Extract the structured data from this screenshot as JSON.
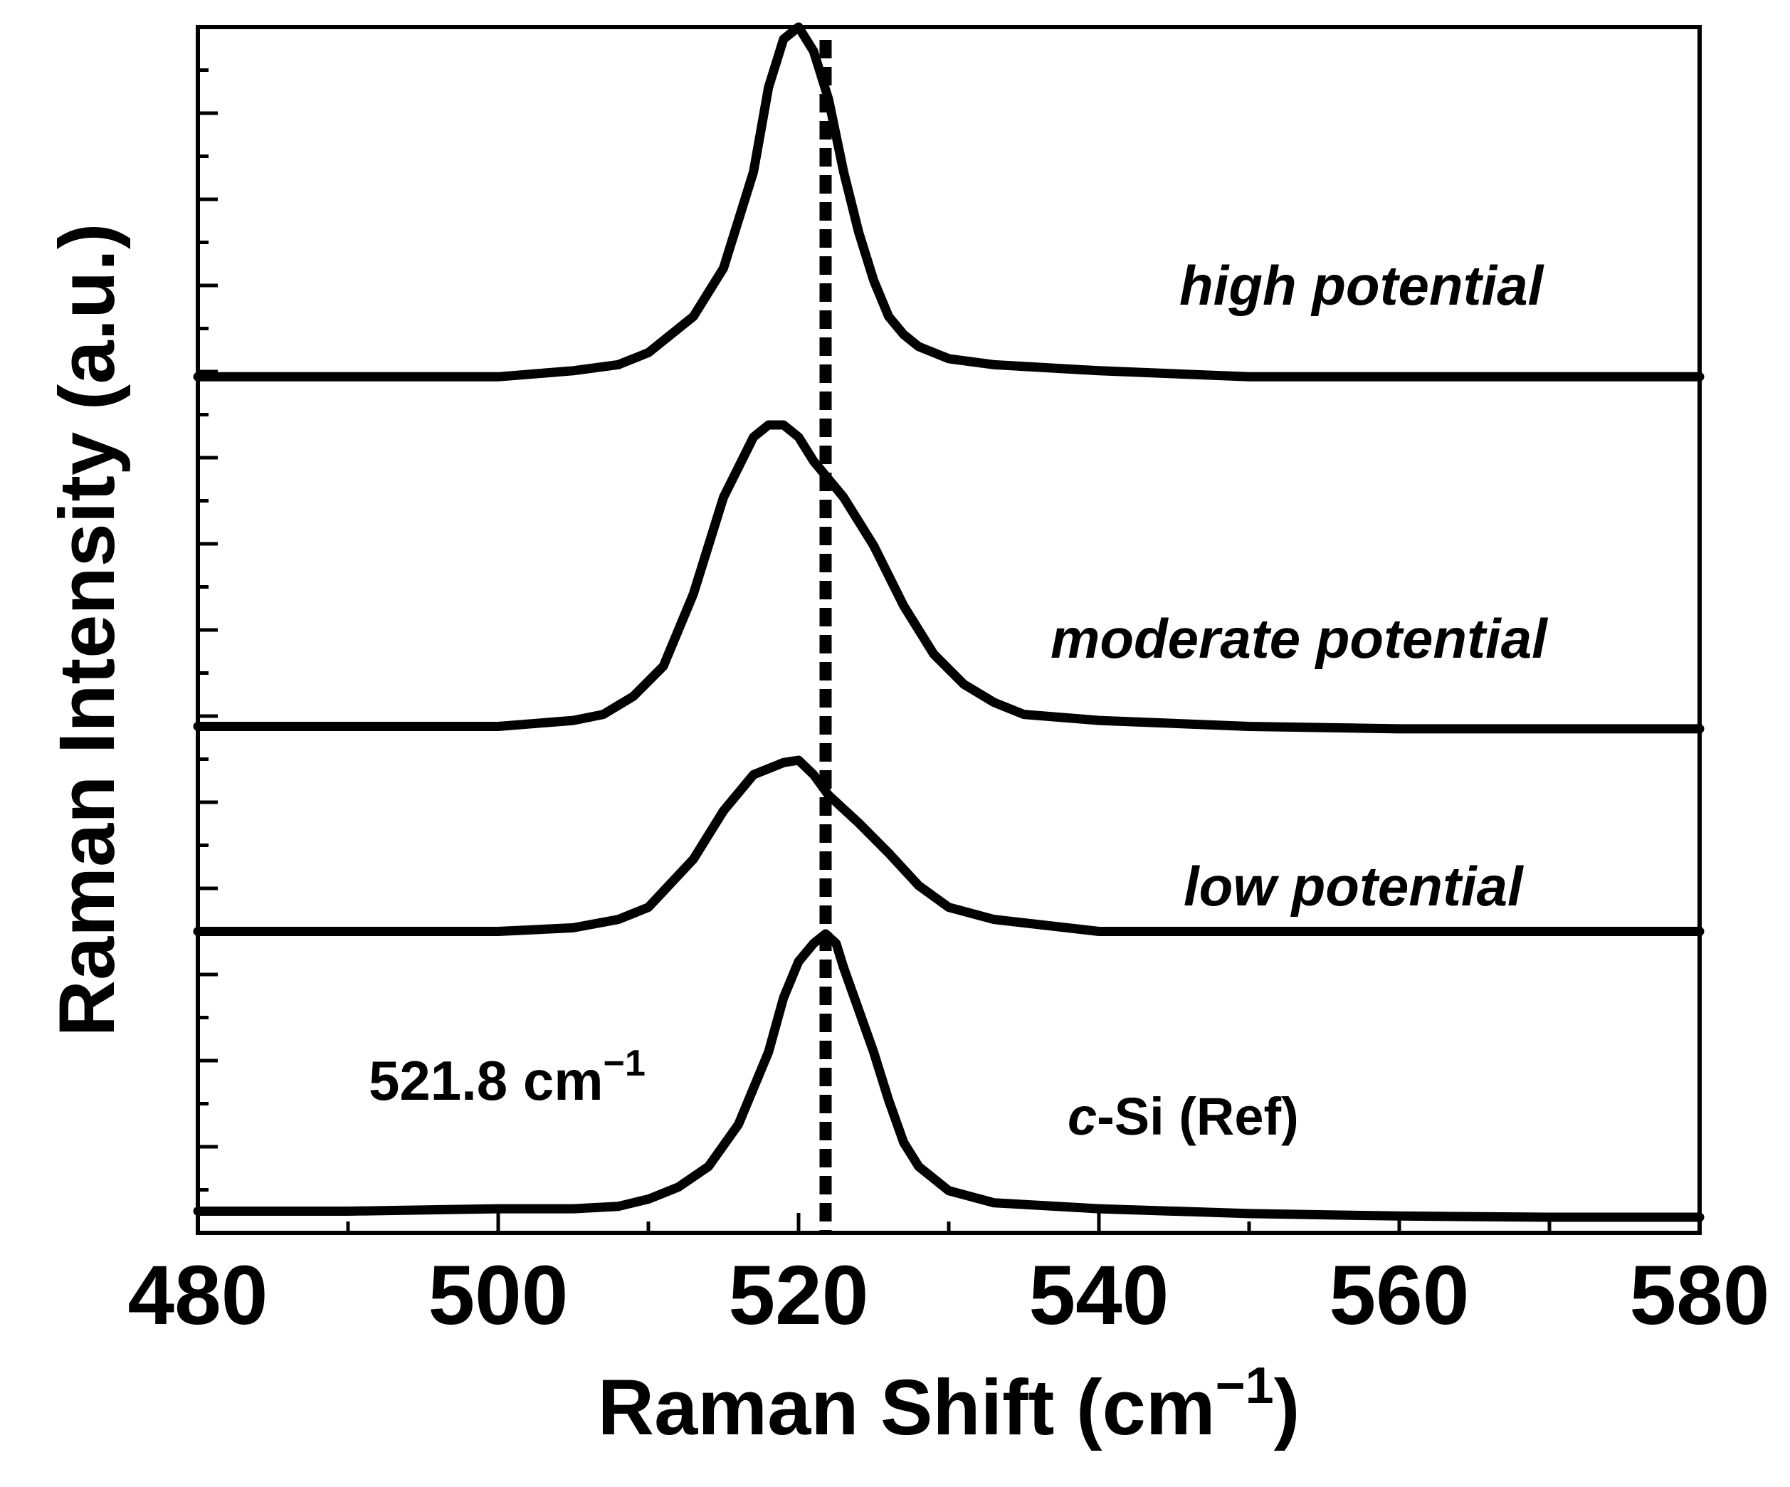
{
  "chart_data": {
    "type": "line",
    "title": "",
    "xlabel": "Raman Shift (cm",
    "xlabel_sup": "−1",
    "xlabel_close": ")",
    "ylabel": "Raman Intensity (a.u.)",
    "xlim": [
      480,
      580
    ],
    "ylim": [
      0,
      100
    ],
    "x_ticks": [
      "480",
      "500",
      "520",
      "540",
      "560",
      "580"
    ],
    "y_tick_labels_shown": false,
    "reference_line": {
      "x": 521.8,
      "style": "dotted"
    },
    "annotation": {
      "text": "521.8 cm",
      "sup": "−1"
    },
    "series": [
      {
        "name": "high potential",
        "label": "high potential",
        "x": [
          480,
          490,
          500,
          505,
          508,
          510,
          513,
          515,
          517,
          518,
          519,
          520,
          521,
          522,
          523,
          524,
          525,
          526,
          527,
          528,
          530,
          533,
          540,
          550,
          560,
          570,
          580
        ],
        "y": [
          71,
          71,
          71,
          71.5,
          72,
          73,
          76,
          80,
          88,
          95,
          99,
          100,
          98,
          94,
          88,
          83,
          79,
          76,
          74.5,
          73.5,
          72.5,
          72,
          71.5,
          71,
          71,
          71,
          71
        ]
      },
      {
        "name": "moderate potential",
        "label": "moderate potential",
        "x": [
          480,
          490,
          500,
          505,
          507,
          509,
          511,
          513,
          515,
          517,
          518,
          519,
          520,
          521,
          523,
          525,
          527,
          529,
          531,
          533,
          535,
          540,
          550,
          560,
          570,
          580
        ],
        "y": [
          42,
          42,
          42,
          42.5,
          43,
          44.5,
          47,
          53,
          61,
          66,
          67,
          67,
          66,
          64,
          61,
          57,
          52,
          48,
          45.5,
          44,
          43,
          42.5,
          42,
          41.8,
          41.8,
          41.8
        ]
      },
      {
        "name": "low potential",
        "label": "low potential",
        "x": [
          480,
          490,
          500,
          505,
          508,
          510,
          513,
          515,
          517,
          519,
          520,
          521,
          522,
          524,
          526,
          528,
          530,
          533,
          540,
          550,
          560,
          570,
          580
        ],
        "y": [
          25,
          25,
          25,
          25.3,
          26,
          27,
          31,
          35,
          38,
          39,
          39.2,
          38,
          36.3,
          34,
          31.5,
          28.8,
          27,
          26,
          25,
          25,
          25,
          25,
          25
        ]
      },
      {
        "name": "c-Si (Ref)",
        "label_italic": "c",
        "label_rest": "-Si (Ref)",
        "x": [
          480,
          490,
          500,
          505,
          508,
          510,
          512,
          514,
          516,
          518,
          519,
          520,
          521,
          521.8,
          522.5,
          523,
          524,
          525,
          526,
          527,
          528,
          530,
          533,
          540,
          550,
          560,
          570,
          580
        ],
        "y": [
          1.8,
          1.8,
          2,
          2,
          2.2,
          2.8,
          3.8,
          5.5,
          9,
          15,
          19.5,
          22.5,
          24,
          24.8,
          24,
          22,
          18.5,
          15,
          11,
          7.5,
          5.5,
          3.5,
          2.5,
          2,
          1.6,
          1.4,
          1.3,
          1.3
        ]
      }
    ]
  }
}
